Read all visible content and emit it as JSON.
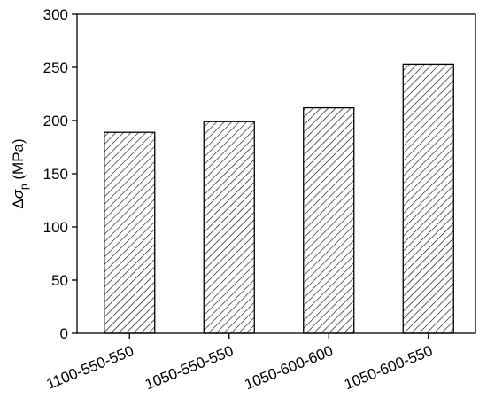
{
  "chart_data": {
    "type": "bar",
    "y_label": [
      "Δ",
      "σ",
      "p",
      " (MPa)"
    ],
    "categories": [
      "1100-550-550",
      "1050-550-550",
      "1050-600-600",
      "1050-600-550"
    ],
    "values": [
      189,
      199,
      212,
      253
    ],
    "color": "#000000",
    "hatch": "diagonal",
    "ylim": [
      0,
      300
    ],
    "yticks": [
      0,
      50,
      100,
      150,
      200,
      250,
      300
    ],
    "grid": false
  }
}
